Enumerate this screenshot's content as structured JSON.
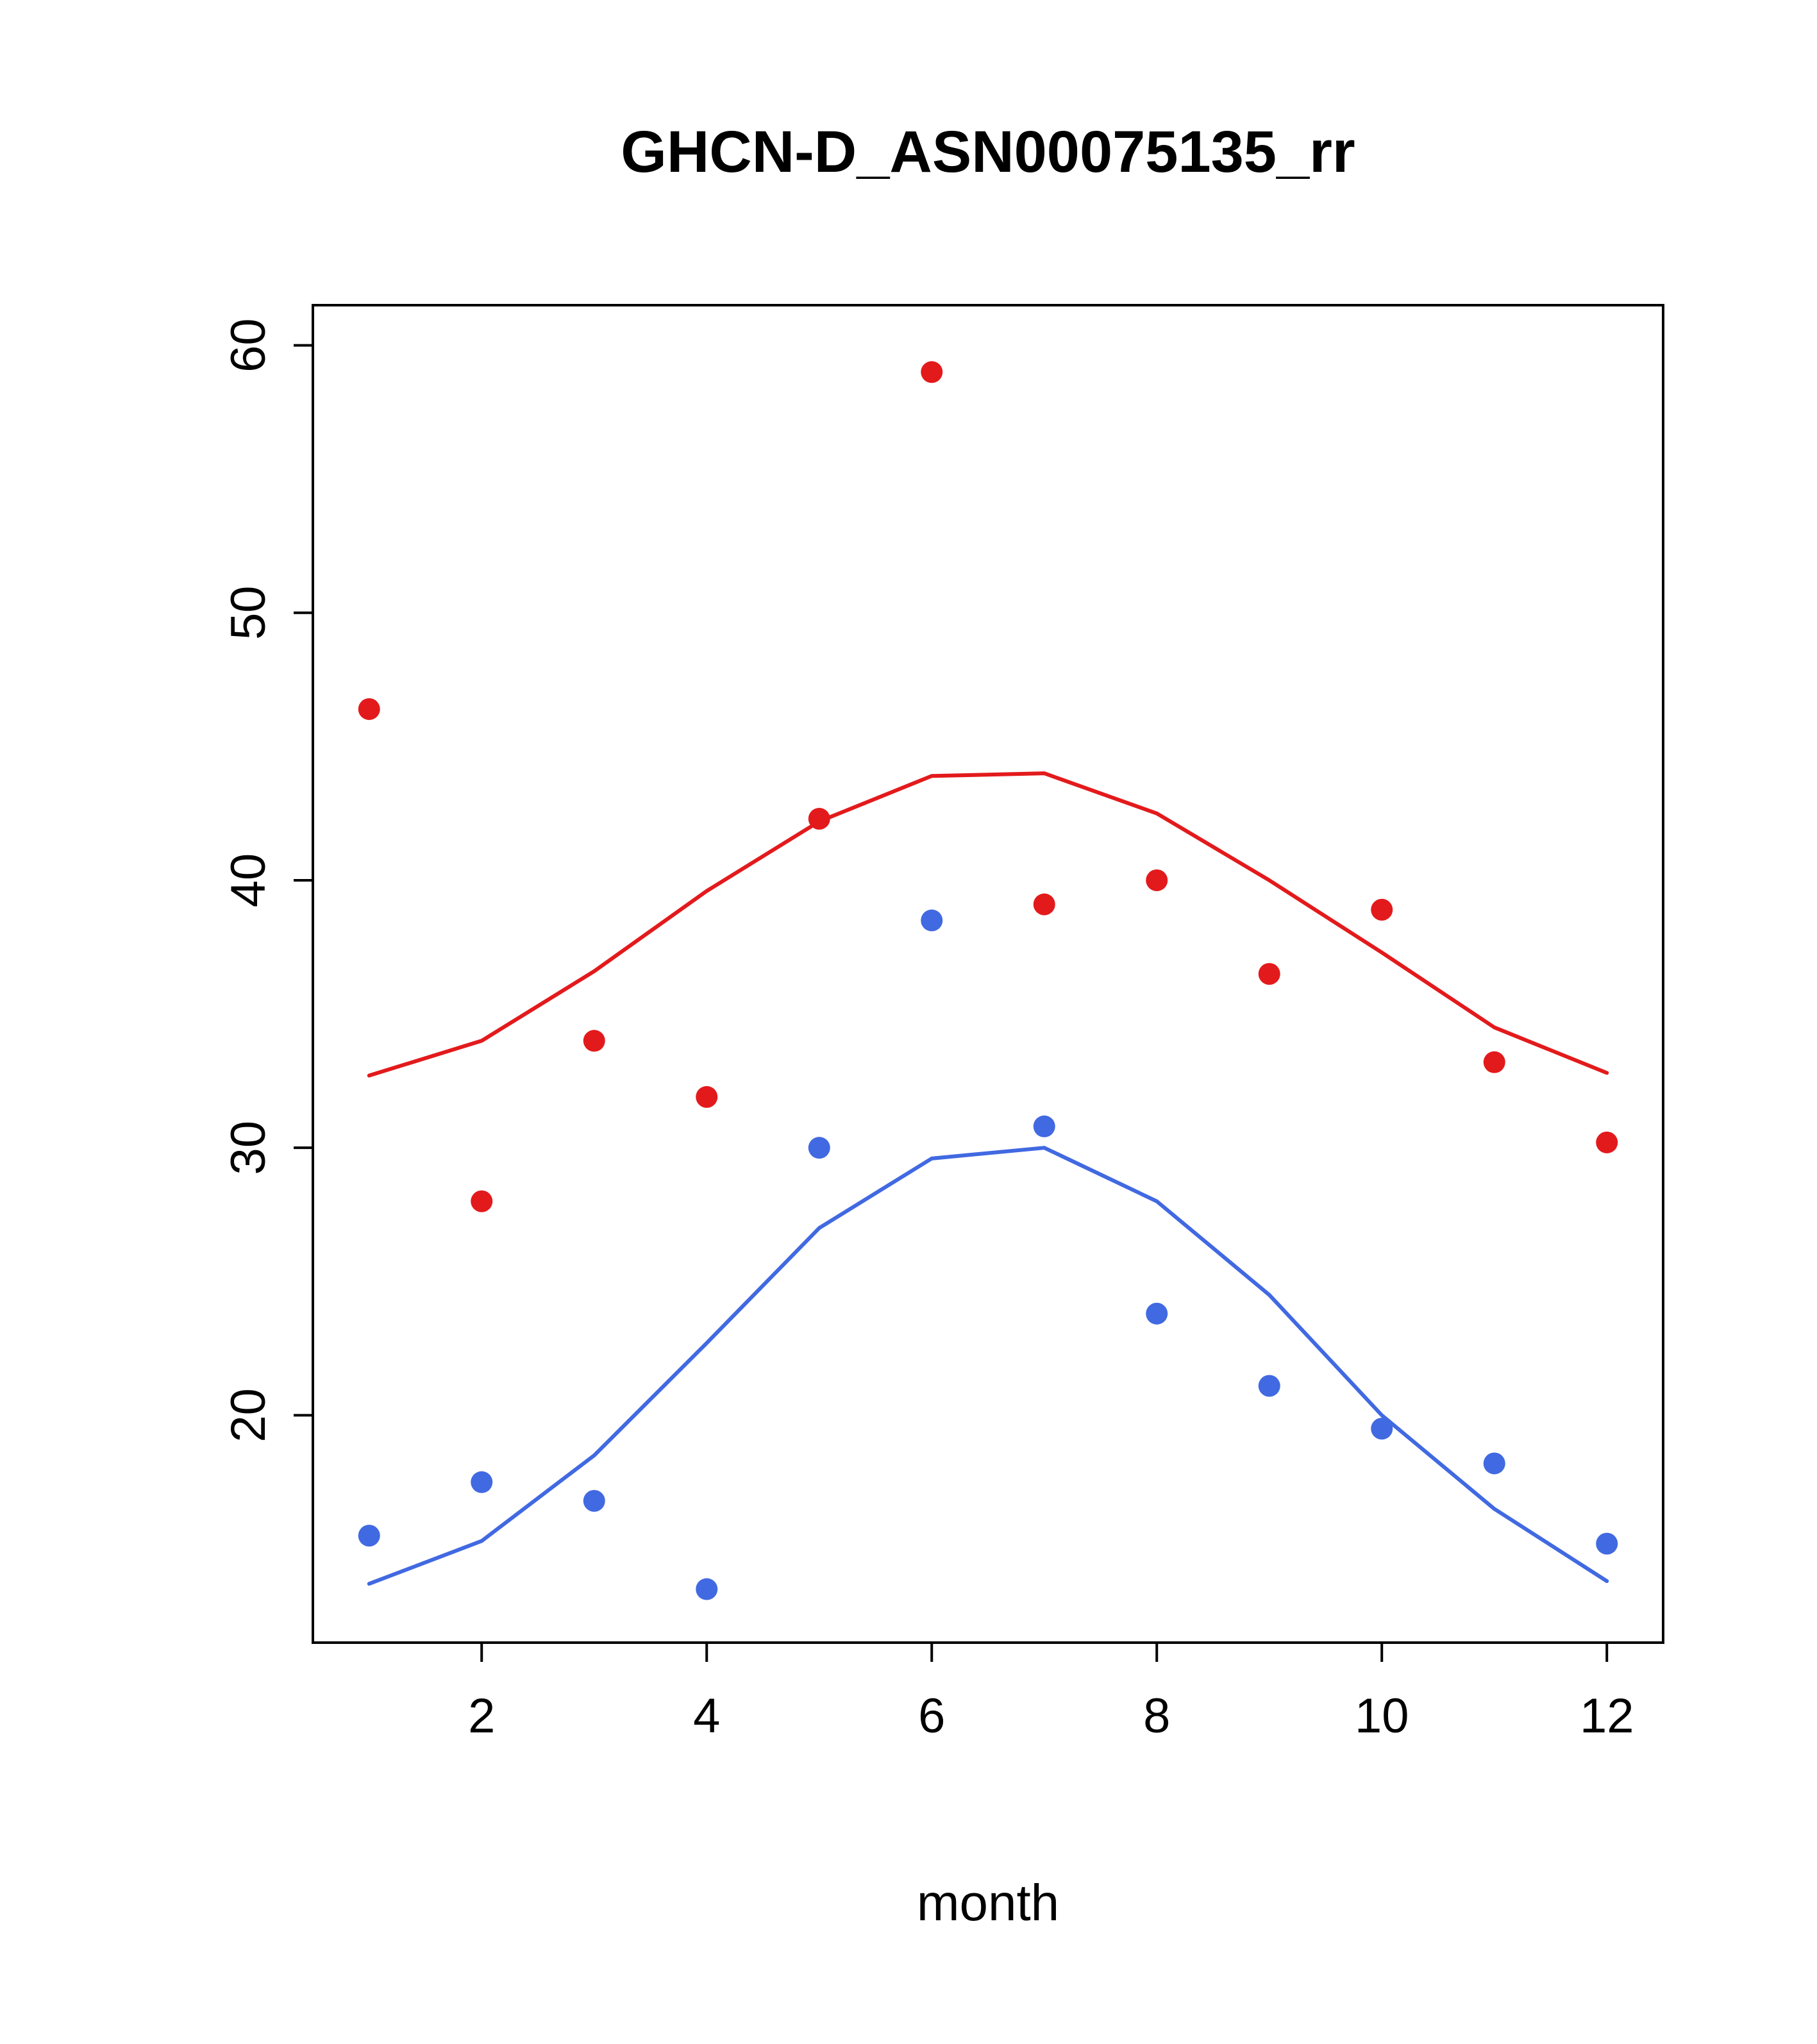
{
  "chart_data": {
    "type": "scatter",
    "title": "GHCN-D_ASN00075135_rr",
    "xlabel": "month",
    "ylabel": "",
    "xlim": [
      0.5,
      12.5
    ],
    "ylim": [
      11.5,
      61.5
    ],
    "x_ticks": [
      2,
      4,
      6,
      8,
      10,
      12
    ],
    "y_ticks": [
      20,
      30,
      40,
      50,
      60
    ],
    "grid": false,
    "legend": "none",
    "colors": {
      "red": "#e31a1c",
      "blue": "#4169e1",
      "axis": "#000000"
    },
    "x": [
      1,
      2,
      3,
      4,
      5,
      6,
      7,
      8,
      9,
      10,
      11,
      12
    ],
    "series": [
      {
        "name": "red-trend-line",
        "kind": "line",
        "color": "#e31a1c",
        "values": [
          32.7,
          34.0,
          36.6,
          39.6,
          42.2,
          43.9,
          44.0,
          42.5,
          40.0,
          37.3,
          34.5,
          32.8
        ]
      },
      {
        "name": "blue-trend-line",
        "kind": "line",
        "color": "#4169e1",
        "values": [
          13.7,
          15.3,
          18.5,
          22.7,
          27.0,
          29.6,
          30.0,
          28.0,
          24.5,
          20.0,
          16.5,
          13.8
        ]
      },
      {
        "name": "red-monthly-points",
        "kind": "points",
        "color": "#e31a1c",
        "values": [
          46.4,
          28.0,
          34.0,
          31.9,
          42.3,
          59.0,
          39.1,
          40.0,
          36.5,
          38.9,
          33.2,
          30.2
        ]
      },
      {
        "name": "blue-monthly-points",
        "kind": "points",
        "color": "#4169e1",
        "values": [
          15.5,
          17.5,
          16.8,
          13.5,
          30.0,
          38.5,
          30.8,
          23.8,
          21.1,
          19.5,
          18.2,
          15.2
        ]
      }
    ]
  }
}
